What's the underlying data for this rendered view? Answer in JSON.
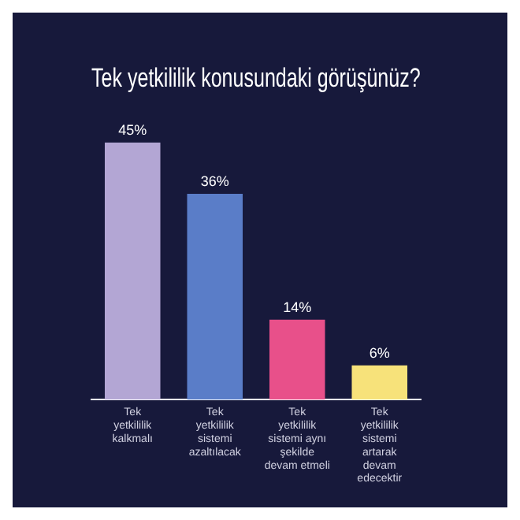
{
  "chart_data": {
    "type": "bar",
    "title": "Tek yetkililik konusundaki görüşünüz?",
    "categories": [
      "Tek yetkililik kalkmalı",
      "Tek yetkililik sistemi azaltılacak",
      "Tek yetkililik sistemi aynı şekilde devam etmeli",
      "Tek yetkililik sistemi artarak devam edecektir"
    ],
    "values": [
      45,
      36,
      14,
      6
    ],
    "colors": [
      "#b3a6d4",
      "#5a7dc8",
      "#e8508a",
      "#f7e27a"
    ],
    "value_labels": [
      "45%",
      "36%",
      "14%",
      "6%"
    ],
    "tick_labels": "x",
    "grid": false,
    "legend": false
  }
}
